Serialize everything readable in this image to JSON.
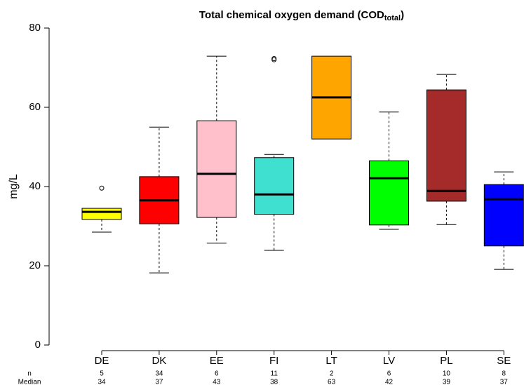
{
  "chart_data": {
    "type": "box",
    "title": "Total chemical oxygen demand (COD",
    "title_sub": "total",
    "title_end": ")",
    "ylabel": "mg/L",
    "categories": [
      "DE",
      "DK",
      "EE",
      "FI",
      "LT",
      "LV",
      "PL",
      "SE"
    ],
    "boxes": [
      {
        "color": "#ffff00",
        "low": 28.5,
        "q1": 31.7,
        "median": 33.6,
        "q3": 34.5,
        "outliers": [
          39.6
        ]
      },
      {
        "color": "#ff0000",
        "low": 18.2,
        "q1": 30.6,
        "median": 36.5,
        "q3": 42.5,
        "high": 55.0,
        "outliers": []
      },
      {
        "color": "#ffc0cb",
        "low": 25.7,
        "q1": 32.2,
        "median": 43.2,
        "q3": 56.6,
        "high": 72.9,
        "outliers": []
      },
      {
        "color": "#40e0d0",
        "low": 23.9,
        "q1": 33.0,
        "median": 38.0,
        "q3": 47.3,
        "high": 48.1,
        "outliers": [
          72.3,
          72.0
        ]
      },
      {
        "color": "#ffa500",
        "q1": 52.0,
        "median": 62.5,
        "q3": 72.9,
        "outliers": []
      },
      {
        "color": "#00ff00",
        "low": 29.2,
        "q1": 30.3,
        "median": 42.1,
        "q3": 46.5,
        "high": 58.8,
        "outliers": []
      },
      {
        "color": "#a52a2a",
        "low": 30.4,
        "q1": 36.3,
        "median": 38.9,
        "q3": 64.4,
        "high": 68.3,
        "outliers": []
      },
      {
        "color": "#0000ff",
        "low": 19.1,
        "q1": 25.0,
        "median": 36.8,
        "q3": 40.5,
        "high": 43.7,
        "outliers": []
      }
    ],
    "n_label": "n",
    "n": [
      5,
      34,
      6,
      11,
      2,
      6,
      10,
      8
    ],
    "median_label": "Median",
    "medians": [
      34,
      37,
      43,
      38,
      63,
      42,
      39,
      37
    ],
    "ylim": [
      0,
      80
    ],
    "yticks": [
      0,
      20,
      40,
      60,
      80
    ]
  }
}
